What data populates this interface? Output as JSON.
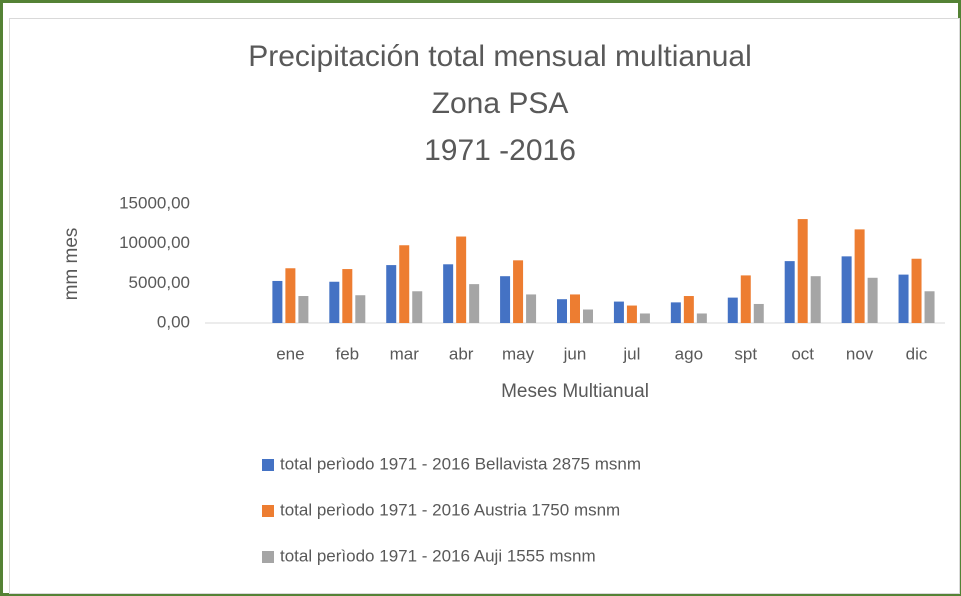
{
  "chart_data": {
    "type": "bar",
    "title": [
      "Precipitación total mensual multianual",
      "Zona PSA",
      "1971 -2016"
    ],
    "y_label": "mm mes",
    "x_label": "Meses  Multianual",
    "categories": [
      null,
      "ene",
      "feb",
      "mar",
      "abr",
      "may",
      "jun",
      "jul",
      "ago",
      "spt",
      "oct",
      "nov",
      "dic"
    ],
    "series": [
      {
        "name": "total perìodo 1971 - 2016 Bellavista 2875 msnm",
        "color": "#4472c4",
        "values": [
          null,
          5300,
          5200,
          7300,
          7400,
          5900,
          3000,
          2700,
          2600,
          3200,
          7800,
          8400,
          6100
        ]
      },
      {
        "name": "total perìodo 1971 - 2016 Austria 1750 msnm",
        "color": "#ed7d31",
        "values": [
          null,
          6900,
          6800,
          9800,
          10900,
          7900,
          3600,
          2200,
          3400,
          6000,
          13100,
          11800,
          8100
        ]
      },
      {
        "name": "total perìodo 1971 - 2016 Auji 1555 msnm",
        "color": "#a5a5a5",
        "values": [
          null,
          3400,
          3500,
          4000,
          4900,
          3600,
          1700,
          1200,
          1200,
          2400,
          5900,
          5700,
          4000
        ]
      }
    ],
    "ylim": [
      0,
      15000
    ],
    "yticks": [
      {
        "value": 0,
        "label": "0,00"
      },
      {
        "value": 5000,
        "label": "5000,00"
      },
      {
        "value": 10000,
        "label": "10000,00"
      },
      {
        "value": 15000,
        "label": "15000,00"
      }
    ],
    "grid": false
  }
}
